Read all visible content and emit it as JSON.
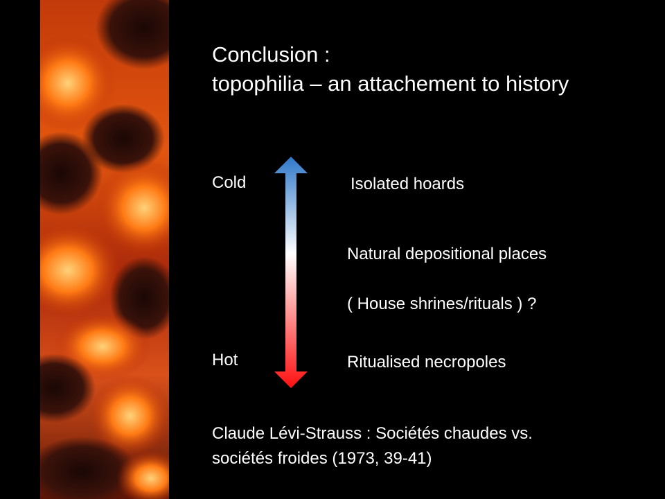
{
  "slide": {
    "title_line1": "Conclusion :",
    "title_line2": "topophilia – an attachement to history",
    "scale_top_label": "Cold",
    "scale_bottom_label": "Hot",
    "items": [
      "Isolated hoards",
      "Natural depositional places",
      "( House shrines/rituals ) ?",
      "Ritualised necropoles"
    ],
    "citation_line1": "Claude Lévi-Strauss : Sociétés chaudes  vs.",
    "citation_line2": "sociétés froides (1973, 39-41)"
  },
  "colors": {
    "background": "#000000",
    "text": "#ffffff",
    "arrow_cold": "#2f78c8",
    "arrow_mid": "#ffffff",
    "arrow_hot": "#ff1010",
    "ember_bright": "#ff8a1e",
    "ember_dark": "#2a0a05"
  }
}
